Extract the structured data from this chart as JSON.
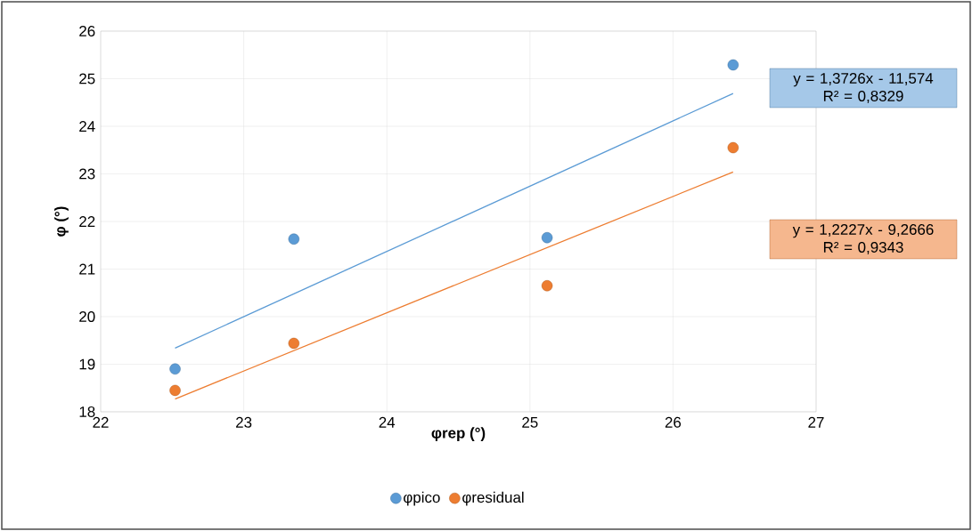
{
  "chart_data": {
    "type": "scatter",
    "xlabel": "φrep (°)",
    "ylabel": "φ (°)",
    "xlim": [
      22,
      27
    ],
    "xticks": [
      22,
      23,
      24,
      25,
      26,
      27
    ],
    "ylim": [
      18,
      26
    ],
    "yticks": [
      18,
      19,
      20,
      21,
      22,
      23,
      24,
      25,
      26
    ],
    "grid": true,
    "legend": "bottom",
    "series": [
      {
        "name": "φpico",
        "marker": "circle",
        "color": "#5b9bd5",
        "x": [
          22.52,
          23.35,
          25.12,
          26.42
        ],
        "values": [
          18.9,
          21.63,
          21.66,
          25.29
        ]
      },
      {
        "name": "φresidual",
        "marker": "circle",
        "color": "#ed7d31",
        "x": [
          22.52,
          23.35,
          25.12,
          26.42
        ],
        "values": [
          18.45,
          19.44,
          20.65,
          23.55
        ]
      },
      {
        "type": "line",
        "marker": "none",
        "color": "#5b9bd5",
        "x": [
          22.52,
          26.42
        ],
        "values": [
          19.34,
          24.69
        ]
      },
      {
        "type": "line",
        "marker": "none",
        "color": "#ed7d31",
        "x": [
          22.52,
          26.42
        ],
        "values": [
          18.27,
          23.04
        ]
      }
    ],
    "annotations": [
      "y = 1,3726x - 11,574",
      "R² = 0,8329",
      "y = 1,2227x - 9,2666",
      "R² = 0,9343"
    ]
  }
}
